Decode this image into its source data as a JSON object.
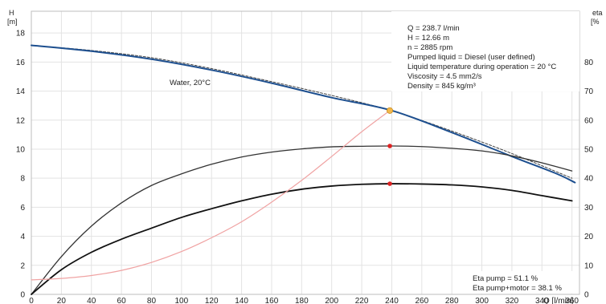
{
  "chart_data": {
    "type": "line",
    "x_axis": {
      "label": "Q [l/min]",
      "range": [
        0,
        365
      ],
      "ticks": [
        0,
        20,
        40,
        60,
        80,
        100,
        120,
        140,
        160,
        180,
        200,
        220,
        240,
        260,
        280,
        300,
        320,
        340,
        360
      ]
    },
    "y_axis_left": {
      "label": "H",
      "unit": "[m]",
      "range": [
        0,
        19.5
      ],
      "ticks": [
        0,
        2,
        4,
        6,
        8,
        10,
        12,
        14,
        16,
        18
      ]
    },
    "y_axis_right": {
      "label": "eta",
      "unit": "[%",
      "range": [
        0,
        97.5
      ],
      "ticks": [
        0,
        10,
        20,
        30,
        40,
        50,
        60,
        70,
        80
      ]
    },
    "grid": true,
    "series": [
      {
        "name": "Water, 20°C",
        "axis": "left",
        "color": "#444444",
        "style": "dashed",
        "x": [
          0,
          40,
          80,
          120,
          160,
          200,
          240,
          280,
          320,
          360
        ],
        "y": [
          17.15,
          16.8,
          16.3,
          15.55,
          14.65,
          13.7,
          12.65,
          11.25,
          9.7,
          8.0
        ]
      },
      {
        "name": "",
        "axis": "left",
        "color": "#1d4f8f",
        "style": "solid",
        "x": [
          0,
          40,
          80,
          120,
          160,
          200,
          240,
          280,
          320,
          350,
          362
        ],
        "y": [
          17.15,
          16.75,
          16.2,
          15.45,
          14.55,
          13.55,
          12.66,
          11.15,
          9.5,
          8.3,
          7.7
        ]
      },
      {
        "name": "",
        "axis": "right",
        "color": "#333333",
        "style": "solid",
        "x": [
          0,
          20,
          40,
          60,
          80,
          100,
          120,
          140,
          160,
          180,
          200,
          220,
          240,
          260,
          280,
          300,
          320,
          340,
          360
        ],
        "y": [
          0,
          13,
          23.5,
          31.5,
          37.5,
          41.5,
          44.8,
          47.3,
          49.0,
          50.1,
          50.8,
          51.0,
          51.1,
          50.9,
          50.3,
          49.4,
          47.7,
          45.3,
          42.5
        ]
      },
      {
        "name": "",
        "axis": "right",
        "color": "#111111",
        "style": "solid",
        "x": [
          0,
          20,
          40,
          60,
          80,
          100,
          120,
          140,
          160,
          180,
          200,
          220,
          240,
          260,
          280,
          300,
          320,
          340,
          360
        ],
        "y": [
          0,
          8.5,
          14.5,
          19.0,
          22.8,
          26.5,
          29.5,
          32.2,
          34.5,
          36.2,
          37.3,
          37.9,
          38.1,
          38.0,
          37.7,
          37.0,
          35.8,
          34.0,
          32.2
        ]
      },
      {
        "name": "",
        "axis": "left",
        "color": "#f0a3a3",
        "style": "solid",
        "x": [
          0,
          20,
          40,
          60,
          80,
          100,
          120,
          140,
          160,
          180,
          200,
          220,
          238.7
        ],
        "y": [
          1.0,
          1.1,
          1.3,
          1.65,
          2.2,
          2.95,
          3.9,
          5.0,
          6.35,
          7.85,
          9.5,
          11.2,
          12.66
        ]
      }
    ],
    "operating_point": {
      "x": 238.7,
      "y": 12.66,
      "color": "#f2b84b"
    },
    "eta_points": [
      {
        "x": 238.7,
        "y": 51.1,
        "color": "#dd2222"
      },
      {
        "x": 238.7,
        "y": 38.1,
        "color": "#dd2222"
      }
    ],
    "annotations": {
      "curve_label": "Water, 20°C",
      "info": [
        "Q = 238.7 l/min",
        "H = 12.66 m",
        "n = 2885 rpm",
        "Pumped liquid = Diesel (user defined)",
        "Liquid temperature during operation = 20 °C",
        "Viscosity = 4.5 mm2/s",
        "Density = 845 kg/m³"
      ],
      "eta": [
        "Eta pump = 51.1 %",
        "Eta pump+motor = 38.1 %"
      ]
    }
  }
}
